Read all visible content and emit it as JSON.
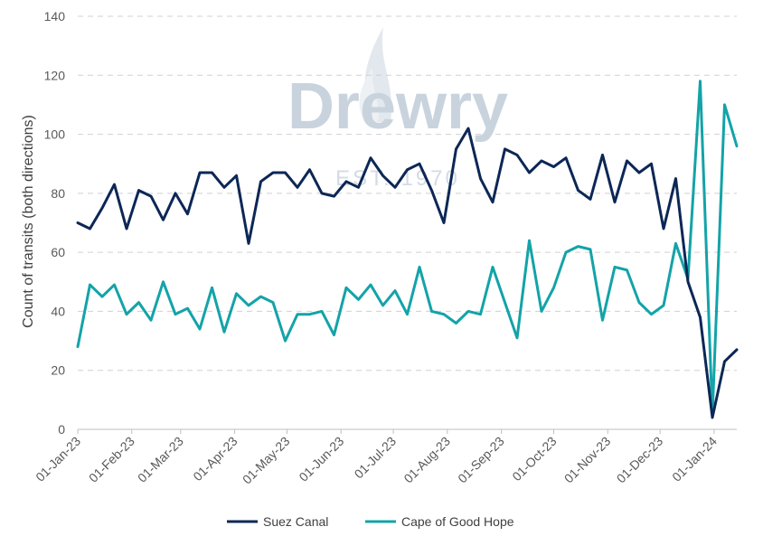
{
  "watermark": {
    "brand": "Drewry",
    "subtitle": "EST. 1970"
  },
  "chart_data": {
    "type": "line",
    "title": "",
    "xlabel": "",
    "ylabel": "Count of transits (both directions)",
    "ylim": [
      0,
      140
    ],
    "yticks": [
      "0",
      "20",
      "40",
      "60",
      "80",
      "100",
      "120",
      "140"
    ],
    "grid": true,
    "legend_position": "bottom",
    "x_start": "2023-01-01",
    "x_step_days": 7,
    "x_tick_labels": [
      "01-Jan-23",
      "01-Feb-23",
      "01-Mar-23",
      "01-Apr-23",
      "01-May-23",
      "01-Jun-23",
      "01-Jul-23",
      "01-Aug-23",
      "01-Sep-23",
      "01-Oct-23",
      "01-Nov-23",
      "01-Dec-23",
      "01-Jan-24"
    ],
    "series": [
      {
        "name": "Suez Canal",
        "color": "#0c2756",
        "values": [
          70,
          68,
          75,
          83,
          68,
          81,
          79,
          71,
          80,
          73,
          87,
          87,
          82,
          86,
          63,
          84,
          87,
          87,
          82,
          88,
          80,
          79,
          84,
          82,
          92,
          86,
          82,
          88,
          90,
          81,
          70,
          95,
          102,
          85,
          77,
          95,
          93,
          87,
          91,
          89,
          92,
          81,
          78,
          93,
          77,
          91,
          87,
          90,
          68,
          85,
          50,
          38,
          4,
          23,
          27
        ]
      },
      {
        "name": "Cape of Good Hope",
        "color": "#13a3a8",
        "values": [
          28,
          49,
          45,
          49,
          39,
          43,
          37,
          50,
          39,
          41,
          34,
          48,
          33,
          46,
          42,
          45,
          43,
          30,
          39,
          39,
          40,
          32,
          48,
          44,
          49,
          42,
          47,
          39,
          55,
          40,
          39,
          36,
          40,
          39,
          55,
          43,
          31,
          64,
          40,
          48,
          60,
          62,
          61,
          37,
          55,
          54,
          43,
          39,
          42,
          63,
          51,
          118,
          5,
          110,
          96
        ]
      }
    ]
  }
}
